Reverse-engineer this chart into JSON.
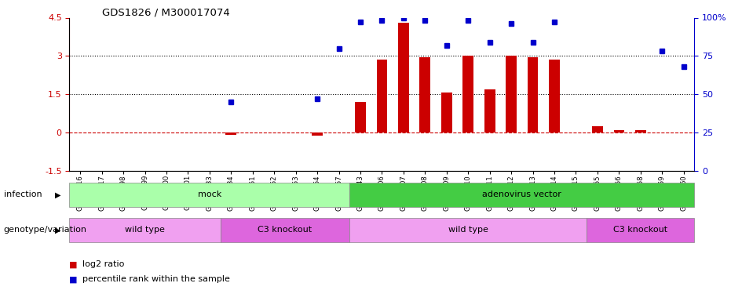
{
  "title": "GDS1826 / M300017074",
  "samples": [
    "GSM87316",
    "GSM87317",
    "GSM93998",
    "GSM93999",
    "GSM94000",
    "GSM94001",
    "GSM93633",
    "GSM93634",
    "GSM93651",
    "GSM93652",
    "GSM93653",
    "GSM93654",
    "GSM93657",
    "GSM86643",
    "GSM87306",
    "GSM87307",
    "GSM87308",
    "GSM87309",
    "GSM87310",
    "GSM87311",
    "GSM87312",
    "GSM87313",
    "GSM87314",
    "GSM87315",
    "GSM93655",
    "GSM93656",
    "GSM93658",
    "GSM93659",
    "GSM93660"
  ],
  "log2_ratio": [
    0.0,
    0.0,
    0.0,
    0.0,
    0.0,
    0.0,
    0.0,
    -0.1,
    0.0,
    0.0,
    0.0,
    -0.12,
    0.0,
    1.2,
    2.85,
    4.3,
    2.95,
    1.55,
    3.0,
    1.7,
    3.0,
    2.95,
    2.85,
    0.0,
    0.25,
    0.1,
    0.1,
    0.0,
    0.0
  ],
  "percentile_right": [
    null,
    null,
    null,
    null,
    null,
    null,
    null,
    45,
    null,
    null,
    null,
    47,
    80,
    97,
    98,
    100,
    98,
    82,
    98,
    84,
    96,
    84,
    97,
    null,
    null,
    null,
    null,
    78,
    68
  ],
  "bar_color": "#cc0000",
  "dot_color": "#0000cc",
  "ylim_left": [
    -1.5,
    4.5
  ],
  "ylim_right": [
    0,
    100
  ],
  "yticks_left": [
    -1.5,
    0.0,
    1.5,
    3.0,
    4.5
  ],
  "yticks_left_labels": [
    "-1.5",
    "0",
    "1.5",
    "3",
    "4.5"
  ],
  "yticks_right": [
    0,
    25,
    50,
    75,
    100
  ],
  "yticks_right_labels": [
    "0",
    "25",
    "50",
    "75",
    "100%"
  ],
  "hline_y": [
    0.0,
    1.5,
    3.0
  ],
  "hline_styles": [
    "dashed",
    "dotted",
    "dotted"
  ],
  "hline_colors": [
    "#cc0000",
    "#000000",
    "#000000"
  ],
  "infection_labels": [
    {
      "text": "mock",
      "start": 0,
      "end": 12,
      "color": "#aaffaa"
    },
    {
      "text": "adenovirus vector",
      "start": 13,
      "end": 28,
      "color": "#44cc44"
    }
  ],
  "genotype_labels": [
    {
      "text": "wild type",
      "start": 0,
      "end": 6,
      "color": "#f0a0f0"
    },
    {
      "text": "C3 knockout",
      "start": 7,
      "end": 12,
      "color": "#dd66dd"
    },
    {
      "text": "wild type",
      "start": 13,
      "end": 23,
      "color": "#f0a0f0"
    },
    {
      "text": "C3 knockout",
      "start": 24,
      "end": 28,
      "color": "#dd66dd"
    }
  ],
  "infection_label": "infection",
  "genotype_label": "genotype/variation",
  "legend_items": [
    {
      "color": "#cc0000",
      "label": "log2 ratio"
    },
    {
      "color": "#0000cc",
      "label": "percentile rank within the sample"
    }
  ],
  "bar_width": 0.5
}
